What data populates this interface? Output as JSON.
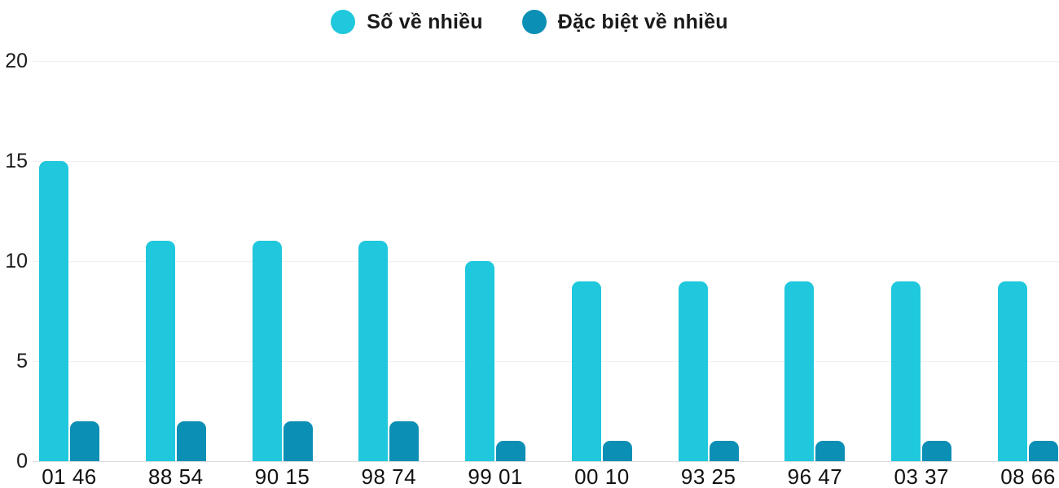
{
  "legend": {
    "items": [
      {
        "label": "Số về nhiều",
        "color": "#1FC8DC"
      },
      {
        "label": "Đặc biệt về nhiều",
        "color": "#0C8FB4"
      }
    ]
  },
  "chart_data": {
    "type": "bar",
    "categories": [
      "01 46",
      "88 54",
      "90 15",
      "98 74",
      "99 01",
      "00 10",
      "93 25",
      "96 47",
      "03 37",
      "08 66"
    ],
    "series": [
      {
        "name": "Số về nhiều",
        "color": "#1FC8DC",
        "values": [
          15,
          11,
          11,
          11,
          10,
          9,
          9,
          9,
          9,
          9
        ]
      },
      {
        "name": "Đặc biệt về nhiều",
        "color": "#0C8FB4",
        "values": [
          2,
          2,
          2,
          2,
          1,
          1,
          1,
          1,
          1,
          1
        ]
      }
    ],
    "title": "",
    "xlabel": "",
    "ylabel": "",
    "ylim": [
      0,
      20
    ],
    "yticks": [
      0,
      5,
      10,
      15,
      20
    ],
    "grid": true,
    "legend_position": "top"
  }
}
